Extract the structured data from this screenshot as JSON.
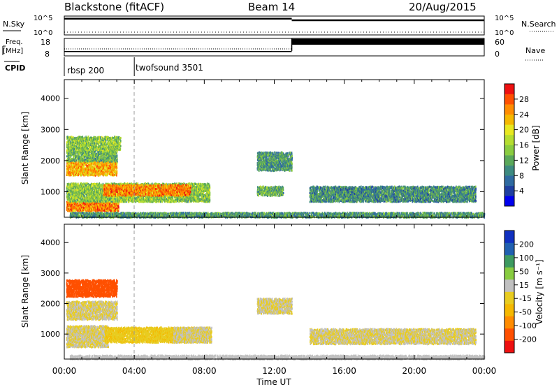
{
  "header": {
    "station": "Blackstone (fitACF)",
    "beam": "Beam 14",
    "date": "20/Aug/2015"
  },
  "params_panel": {
    "nsky_label": "N.Sky",
    "nsearch_label": "N.Search",
    "nsky_ticks": [
      "10^5",
      "10^0"
    ],
    "nsearch_ticks": [
      "10^5",
      "10^0"
    ],
    "freq_label_1": "Freq.",
    "freq_label_2": "[MHz]",
    "freq_ticks": [
      "18",
      "8"
    ],
    "nave_label": "Nave",
    "nave_ticks": [
      "60",
      "0"
    ],
    "cpid_label": "CPID",
    "cpid_entries": [
      {
        "name": "rbsp 200",
        "start_hour": 0
      },
      {
        "name": "twofsound 3501",
        "start_hour": 4
      }
    ],
    "freq_mhz_segments": [
      {
        "from_hour": 0,
        "to_hour": 13,
        "value": 10.5
      },
      {
        "from_hour": 13,
        "to_hour": 24,
        "value": 18
      }
    ],
    "nave_segments": [
      {
        "from_hour": 0,
        "to_hour": 13,
        "value": 24
      },
      {
        "from_hour": 13,
        "to_hour": 24,
        "value": 55
      }
    ],
    "nsky_level_log": [
      {
        "from_hour": 0,
        "to_hour": 13,
        "value": 4.3
      },
      {
        "from_hour": 13,
        "to_hour": 24,
        "value": 3.9
      }
    ]
  },
  "chart_data": [
    {
      "type": "heatmap",
      "parameter": "power",
      "ylabel": "Slant Range [km]",
      "xlabel": "Time UT",
      "ylim": [
        180,
        4600
      ],
      "xlim_hours": [
        0,
        24
      ],
      "yticks": [
        "1000",
        "2000",
        "3000",
        "4000"
      ],
      "xticks": [
        "00:00",
        "04:00",
        "08:00",
        "12:00",
        "16:00",
        "20:00",
        "00:00"
      ],
      "colorbar": {
        "label": "Power [dB]",
        "range": [
          0,
          30
        ],
        "ticks": [
          "4",
          "8",
          "12",
          "16",
          "20",
          "24",
          "28"
        ],
        "colors": [
          "#0000ee",
          "#1f3fa0",
          "#2f6aa0",
          "#3d8a80",
          "#5aa85a",
          "#8acc40",
          "#b5dd30",
          "#e8e820",
          "#f5b800",
          "#ff8c00",
          "#ff5000",
          "#ee1010"
        ]
      },
      "echo_regions": [
        {
          "t0": 0.1,
          "t1": 3.1,
          "r0": 400,
          "r1": 700,
          "power": 24
        },
        {
          "t0": 0.1,
          "t1": 8.3,
          "r0": 700,
          "r1": 1300,
          "power": 14
        },
        {
          "t0": 2.2,
          "t1": 7.2,
          "r0": 900,
          "r1": 1250,
          "power": 24
        },
        {
          "t0": 0.1,
          "t1": 3.0,
          "r0": 1550,
          "r1": 2000,
          "power": 22
        },
        {
          "t0": 0.1,
          "t1": 3.0,
          "r0": 2000,
          "r1": 2350,
          "power": 12
        },
        {
          "t0": 0.1,
          "t1": 3.2,
          "r0": 2350,
          "r1": 2800,
          "power": 14
        },
        {
          "t0": 0.3,
          "t1": 24.0,
          "r0": 200,
          "r1": 360,
          "power": 10
        },
        {
          "t0": 11.0,
          "t1": 13.0,
          "r0": 1700,
          "r1": 2300,
          "power": 10
        },
        {
          "t0": 11.0,
          "t1": 12.5,
          "r0": 900,
          "r1": 1200,
          "power": 12
        },
        {
          "t0": 15.5,
          "t1": 17.5,
          "r0": 850,
          "r1": 1150,
          "power": 11
        },
        {
          "t0": 14.0,
          "t1": 23.5,
          "r0": 700,
          "r1": 1200,
          "power": 9
        }
      ]
    },
    {
      "type": "heatmap",
      "parameter": "velocity",
      "ylabel": "Slant Range [km]",
      "xlabel": "Time UT",
      "ylim": [
        180,
        4600
      ],
      "xlim_hours": [
        0,
        24
      ],
      "yticks": [
        "1000",
        "2000",
        "3000",
        "4000"
      ],
      "xticks": [
        "00:00",
        "04:00",
        "08:00",
        "12:00",
        "16:00",
        "20:00",
        "00:00"
      ],
      "colorbar": {
        "label": "Velocity [m s⁻¹]",
        "range": [
          -250,
          250
        ],
        "ticks": [
          "-200",
          "-100",
          "-50",
          "-15",
          "15",
          "50",
          "100",
          "200"
        ],
        "colors": [
          "#ee1010",
          "#ff5000",
          "#ff8c00",
          "#f5b800",
          "#e8cc20",
          "#c0c0c0",
          "#88cc40",
          "#3d9a60",
          "#2060b0",
          "#1030c0"
        ]
      },
      "echo_regions": [
        {
          "t0": 0.1,
          "t1": 3.0,
          "r0": 2250,
          "r1": 2800,
          "velocity": -180
        },
        {
          "t0": 0.1,
          "t1": 3.0,
          "r0": 1500,
          "r1": 2100,
          "velocity": 0
        },
        {
          "t0": 0.1,
          "t1": 2.5,
          "r0": 600,
          "r1": 1300,
          "velocity": 0
        },
        {
          "t0": 2.3,
          "t1": 8.2,
          "r0": 750,
          "r1": 1250,
          "velocity": -40
        },
        {
          "t0": 6.2,
          "t1": 8.4,
          "r0": 750,
          "r1": 1250,
          "velocity": 0
        },
        {
          "t0": 0.3,
          "t1": 24.0,
          "r0": 200,
          "r1": 330,
          "velocity": 30
        },
        {
          "t0": 11.0,
          "t1": 13.0,
          "r0": 1700,
          "r1": 2200,
          "velocity": 0
        },
        {
          "t0": 14.0,
          "t1": 23.5,
          "r0": 700,
          "r1": 1200,
          "velocity": 0
        }
      ]
    }
  ]
}
